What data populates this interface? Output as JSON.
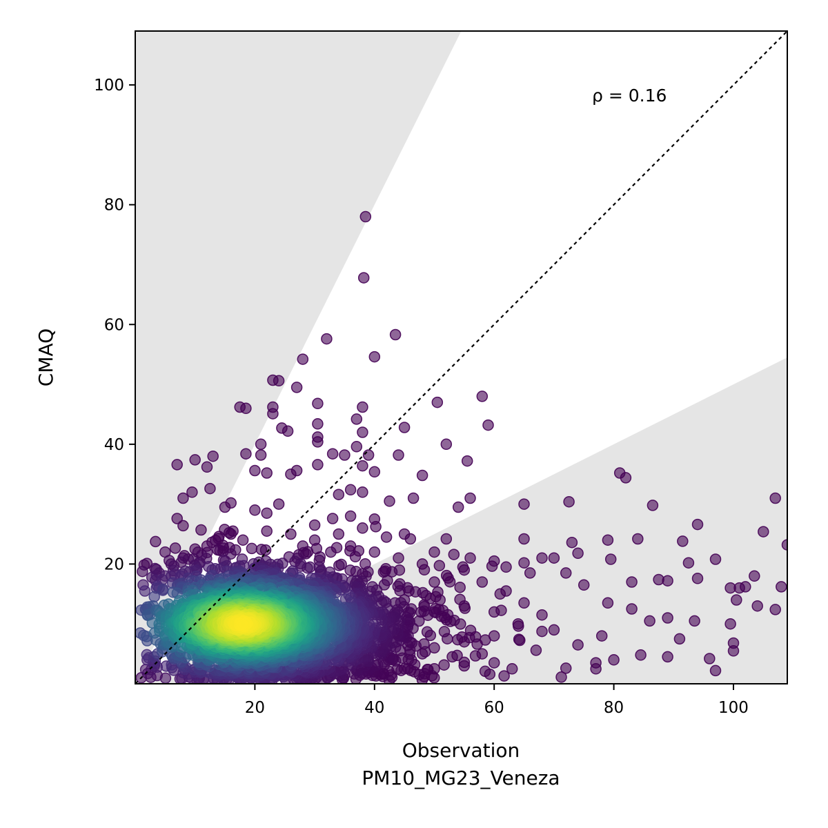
{
  "chart_data": {
    "type": "scatter",
    "xlabel": "Observation",
    "xlabel_sub": "PM10_MG23_Veneza",
    "ylabel": "CMAQ",
    "annotation": "ρ = 0.16",
    "xlim": [
      0,
      109
    ],
    "ylim": [
      0,
      109
    ],
    "xticks": [
      20,
      40,
      60,
      80,
      100
    ],
    "yticks": [
      20,
      40,
      60,
      80,
      100
    ],
    "identity_line": true,
    "factor2_band": {
      "upper_slope": 2.0,
      "lower_slope": 0.5,
      "fill_color": "#e5e5e5"
    },
    "colormap": "viridis",
    "marker_alpha": 0.6,
    "density_peak": {
      "x": 18,
      "y": 10
    },
    "sampled_points": [
      [
        38.5,
        78
      ],
      [
        38.2,
        67.8
      ],
      [
        43.5,
        58.3
      ],
      [
        32,
        57.6
      ],
      [
        40,
        54.6
      ],
      [
        28,
        54.2
      ],
      [
        23,
        50.7
      ],
      [
        24,
        50.6
      ],
      [
        27,
        49.5
      ],
      [
        58,
        48
      ],
      [
        50.5,
        47
      ],
      [
        30.5,
        46.8
      ],
      [
        17.5,
        46.2
      ],
      [
        18.5,
        46
      ],
      [
        38,
        46.2
      ],
      [
        23,
        46.2
      ],
      [
        23,
        45.1
      ],
      [
        37,
        44.2
      ],
      [
        59,
        43.2
      ],
      [
        45,
        42.8
      ],
      [
        24.5,
        42.7
      ],
      [
        25.5,
        42.2
      ],
      [
        38,
        42
      ],
      [
        30.5,
        43.4
      ],
      [
        30.5,
        41.2
      ],
      [
        30.5,
        40.4
      ],
      [
        52,
        40
      ],
      [
        21,
        40
      ],
      [
        37,
        39.6
      ],
      [
        39,
        38.2
      ],
      [
        18.5,
        38.4
      ],
      [
        13,
        38
      ],
      [
        10,
        37.4
      ],
      [
        21,
        38.2
      ],
      [
        44,
        38.2
      ],
      [
        33,
        38.4
      ],
      [
        35,
        38.2
      ],
      [
        55.5,
        37.2
      ],
      [
        7,
        36.6
      ],
      [
        12,
        36.2
      ],
      [
        30.5,
        36.6
      ],
      [
        38,
        36.4
      ],
      [
        27,
        35.6
      ],
      [
        20,
        35.6
      ],
      [
        22,
        35.2
      ],
      [
        48,
        34.8
      ],
      [
        40,
        35.4
      ],
      [
        26,
        35
      ],
      [
        12.5,
        32.6
      ],
      [
        9.5,
        32
      ],
      [
        8,
        31
      ],
      [
        16,
        30.2
      ],
      [
        15,
        29.5
      ],
      [
        56,
        31
      ],
      [
        54,
        29.5
      ],
      [
        46.5,
        31
      ],
      [
        36,
        32.4
      ],
      [
        34,
        31.6
      ],
      [
        38,
        32
      ],
      [
        42.5,
        30.5
      ],
      [
        20,
        29
      ],
      [
        22,
        28.5
      ],
      [
        24,
        30
      ],
      [
        81,
        35.2
      ],
      [
        82,
        34.4
      ],
      [
        86.5,
        29.8
      ],
      [
        107,
        31
      ],
      [
        72.5,
        30.4
      ],
      [
        65,
        30
      ],
      [
        105,
        25.4
      ],
      [
        94,
        26.6
      ],
      [
        91.5,
        23.8
      ],
      [
        79,
        24
      ],
      [
        84,
        24.2
      ],
      [
        109,
        23.2
      ],
      [
        65,
        24.2
      ],
      [
        73,
        23.6
      ],
      [
        74,
        21.8
      ],
      [
        79.5,
        20.8
      ],
      [
        97,
        20.8
      ],
      [
        92.5,
        20.2
      ],
      [
        94,
        17.6
      ],
      [
        83,
        17
      ],
      [
        87.5,
        17.4
      ],
      [
        89,
        17.2
      ],
      [
        99.5,
        16
      ],
      [
        101,
        16
      ],
      [
        102,
        16.2
      ],
      [
        103.5,
        18
      ],
      [
        108,
        16.2
      ],
      [
        104,
        13
      ],
      [
        107,
        12.4
      ],
      [
        100.5,
        14
      ],
      [
        89,
        11
      ],
      [
        93.5,
        10.5
      ],
      [
        99.5,
        10
      ],
      [
        91,
        7.5
      ],
      [
        100,
        6.8
      ],
      [
        100,
        5.5
      ],
      [
        96,
        4.2
      ],
      [
        97,
        2.2
      ],
      [
        89,
        4.5
      ],
      [
        77,
        2.5
      ],
      [
        72,
        2.6
      ],
      [
        77,
        3.5
      ],
      [
        84.5,
        4.8
      ],
      [
        80,
        4
      ],
      [
        67,
        5.6
      ],
      [
        1,
        12.3
      ],
      [
        2,
        12.8
      ],
      [
        2,
        7.2
      ],
      [
        2,
        4
      ],
      [
        1,
        1
      ],
      [
        3,
        3.5
      ],
      [
        5,
        22
      ],
      [
        7,
        27.6
      ],
      [
        8,
        26.4
      ],
      [
        11,
        25.7
      ],
      [
        14,
        24.6
      ],
      [
        4,
        18.5
      ],
      [
        46,
        24.2
      ],
      [
        52,
        24.2
      ],
      [
        56,
        21
      ],
      [
        60,
        20.5
      ],
      [
        65,
        20.2
      ],
      [
        68,
        21
      ],
      [
        70,
        21
      ],
      [
        62,
        19.5
      ],
      [
        66,
        18.5
      ],
      [
        72,
        18.5
      ],
      [
        75,
        16.5
      ],
      [
        79,
        13.5
      ],
      [
        83,
        12.5
      ],
      [
        86,
        10.5
      ],
      [
        78,
        8
      ],
      [
        74,
        6.5
      ],
      [
        70,
        9
      ],
      [
        68,
        11.5
      ],
      [
        65,
        13.5
      ],
      [
        62,
        15.5
      ],
      [
        58,
        17
      ],
      [
        55,
        19
      ],
      [
        50,
        22
      ],
      [
        48,
        20
      ],
      [
        44,
        21
      ],
      [
        40,
        22
      ],
      [
        36,
        23
      ],
      [
        30,
        24
      ],
      [
        26,
        25
      ],
      [
        30,
        26.5
      ],
      [
        33,
        27.6
      ],
      [
        36,
        28
      ],
      [
        40,
        27.5
      ],
      [
        45,
        25
      ],
      [
        42,
        24.5
      ],
      [
        38,
        26
      ],
      [
        34,
        25
      ],
      [
        28,
        23
      ],
      [
        22,
        25.5
      ],
      [
        18,
        24
      ],
      [
        16,
        25
      ],
      [
        12,
        23
      ],
      [
        10,
        22.5
      ],
      [
        8,
        21
      ],
      [
        6,
        20
      ],
      [
        5,
        18
      ],
      [
        4,
        16
      ],
      [
        3,
        13
      ],
      [
        4,
        10
      ],
      [
        5,
        8
      ],
      [
        6,
        5
      ],
      [
        8,
        3
      ],
      [
        12,
        2
      ],
      [
        16,
        1.5
      ],
      [
        20,
        2
      ],
      [
        25,
        1.5
      ],
      [
        30,
        2
      ],
      [
        35,
        1.5
      ],
      [
        40,
        2
      ],
      [
        45,
        2.5
      ],
      [
        50,
        2.5
      ],
      [
        55,
        3
      ],
      [
        60,
        3.5
      ],
      [
        63,
        2.5
      ],
      [
        58,
        5
      ],
      [
        53,
        4.5
      ],
      [
        48,
        5
      ],
      [
        43,
        4
      ],
      [
        38,
        4.5
      ],
      [
        33,
        4
      ],
      [
        28,
        4
      ],
      [
        23,
        4.5
      ],
      [
        50,
        12
      ],
      [
        55,
        13
      ],
      [
        60,
        12
      ],
      [
        64,
        10
      ],
      [
        60,
        8
      ],
      [
        55,
        7
      ],
      [
        50,
        6
      ],
      [
        45,
        8
      ],
      [
        40,
        9
      ],
      [
        35,
        12
      ],
      [
        45,
        14
      ],
      [
        50,
        17
      ]
    ]
  }
}
